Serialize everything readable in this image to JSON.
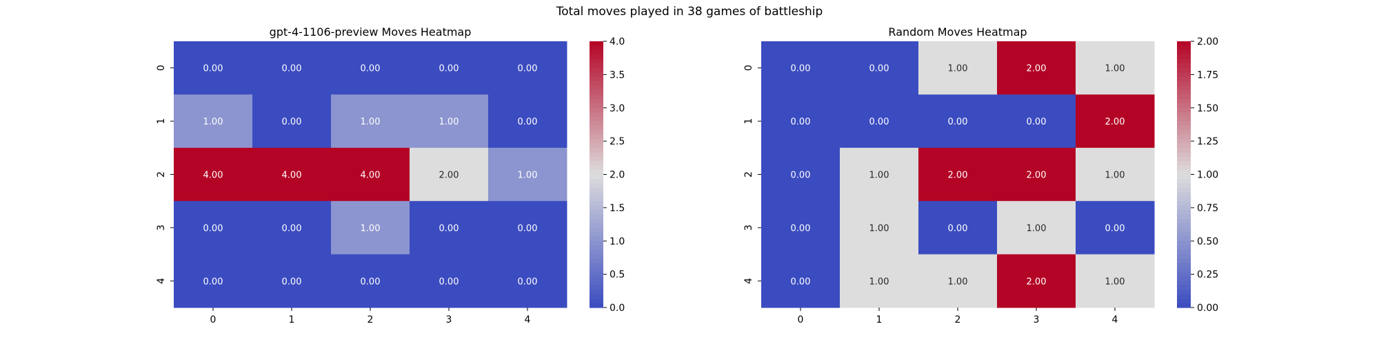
{
  "figure": {
    "suptitle": "Total moves played in 38 games of battleship"
  },
  "colors": {
    "cmap": "coolwarm",
    "low": "#3b4cc0",
    "mid": "#dddddd",
    "high": "#b40426"
  },
  "chart_data": [
    {
      "type": "heatmap",
      "title": "gpt-4-1106-preview Moves Heatmap",
      "xlabel": "",
      "ylabel": "",
      "x_ticks": [
        "0",
        "1",
        "2",
        "3",
        "4"
      ],
      "y_ticks": [
        "0",
        "1",
        "2",
        "3",
        "4"
      ],
      "values": [
        [
          0,
          0,
          0,
          0,
          0
        ],
        [
          1,
          0,
          1,
          1,
          0
        ],
        [
          4,
          4,
          4,
          2,
          1
        ],
        [
          0,
          0,
          1,
          0,
          0
        ],
        [
          0,
          0,
          0,
          0,
          0
        ]
      ],
      "annotation_format": "0.00",
      "colorbar": {
        "vmin": 0,
        "vmax": 4,
        "ticks": [
          "0.0",
          "0.5",
          "1.0",
          "1.5",
          "2.0",
          "2.5",
          "3.0",
          "3.5",
          "4.0"
        ]
      }
    },
    {
      "type": "heatmap",
      "title": "Random Moves Heatmap",
      "xlabel": "",
      "ylabel": "",
      "x_ticks": [
        "0",
        "1",
        "2",
        "3",
        "4"
      ],
      "y_ticks": [
        "0",
        "1",
        "2",
        "3",
        "4"
      ],
      "values": [
        [
          0,
          0,
          1,
          2,
          1
        ],
        [
          0,
          0,
          0,
          0,
          2
        ],
        [
          0,
          1,
          2,
          2,
          1
        ],
        [
          0,
          1,
          0,
          1,
          0
        ],
        [
          0,
          1,
          1,
          2,
          1
        ]
      ],
      "annotation_format": "0.00",
      "colorbar": {
        "vmin": 0,
        "vmax": 2,
        "ticks": [
          "0.00",
          "0.25",
          "0.50",
          "0.75",
          "1.00",
          "1.25",
          "1.50",
          "1.75",
          "2.00"
        ]
      }
    }
  ]
}
